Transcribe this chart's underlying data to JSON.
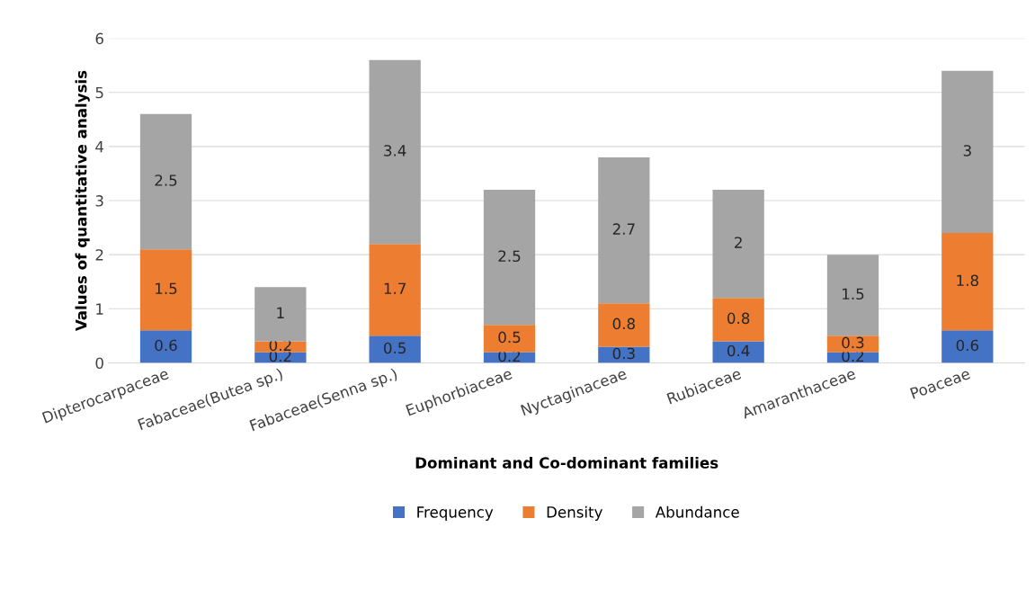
{
  "chart_data": {
    "type": "bar",
    "stacked": true,
    "xlabel": "Dominant and Co-dominant families",
    "ylabel": "Values of quantitative analysis",
    "categories": [
      "Dipterocarpaceae",
      "Fabaceae(Butea sp.)",
      "Fabaceae(Senna sp.)",
      "Euphorbiaceae",
      "Nyctaginaceae",
      "Rubiaceae",
      "Amaranthaceae",
      "Poaceae"
    ],
    "series": [
      {
        "name": "Frequency",
        "color": "#4472c4",
        "values": [
          0.6,
          0.2,
          0.5,
          0.2,
          0.3,
          0.4,
          0.2,
          0.6
        ]
      },
      {
        "name": "Density",
        "color": "#ed7d31",
        "values": [
          1.5,
          0.2,
          1.7,
          0.5,
          0.8,
          0.8,
          0.3,
          1.8
        ]
      },
      {
        "name": "Abundance",
        "color": "#a5a5a5",
        "values": [
          2.5,
          1,
          3.4,
          2.5,
          2.7,
          2,
          1.5,
          3
        ]
      }
    ],
    "ylim": [
      0,
      6
    ],
    "yticks": [
      0,
      1,
      2,
      3,
      4,
      5,
      6
    ],
    "grid": "y",
    "legend": "bottom",
    "data_labels": true
  }
}
